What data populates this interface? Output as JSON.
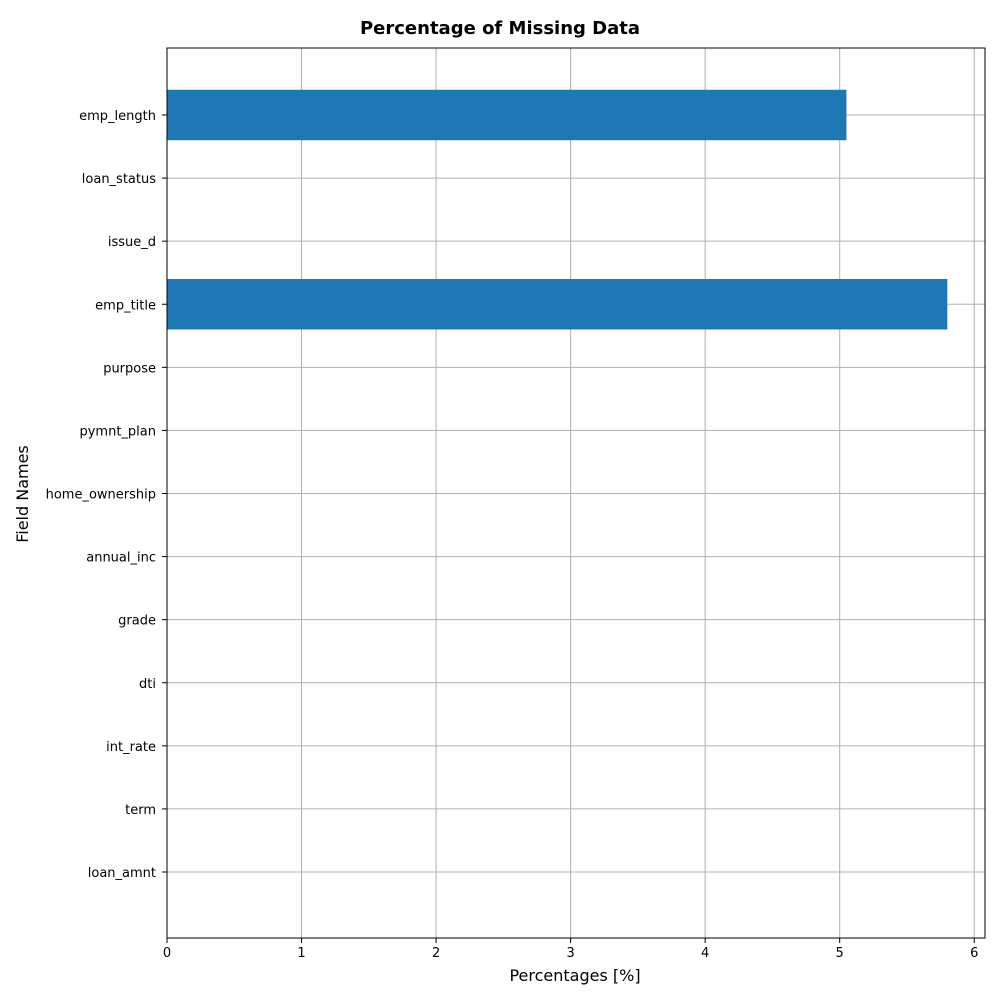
{
  "chart_data": {
    "type": "bar",
    "orientation": "horizontal",
    "title": "Percentage of Missing Data",
    "xlabel": "Percentages [%]",
    "ylabel": "Field Names",
    "categories": [
      "loan_amnt",
      "term",
      "int_rate",
      "dti",
      "grade",
      "annual_inc",
      "home_ownership",
      "pymnt_plan",
      "purpose",
      "emp_title",
      "issue_d",
      "loan_status",
      "emp_length"
    ],
    "values": [
      0,
      0,
      0,
      0,
      0,
      0,
      0,
      0,
      0,
      5.8,
      0,
      0,
      5.05
    ],
    "xlim": [
      0,
      6.08
    ],
    "xticks": [
      0,
      1,
      2,
      3,
      4,
      5,
      6
    ],
    "xtick_labels": [
      "0",
      "1",
      "2",
      "3",
      "4",
      "5",
      "6"
    ],
    "grid": true,
    "colors": {
      "bar": "#1f77b4",
      "grid": "#b0b0b0",
      "axis": "#000000"
    }
  }
}
